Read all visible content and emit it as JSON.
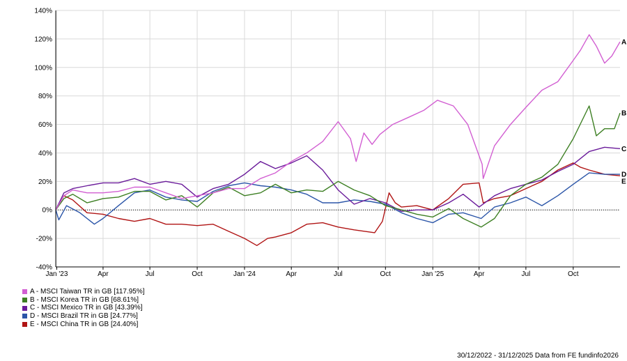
{
  "chart_data": {
    "type": "line",
    "title": "",
    "xlabel": "",
    "ylabel": "",
    "x_range": [
      "2022-12-30",
      "2025-12-31"
    ],
    "ylim": [
      -40,
      140
    ],
    "y_ticks": [
      -40,
      -20,
      0,
      20,
      40,
      60,
      80,
      100,
      120,
      140
    ],
    "y_tick_labels": [
      "-40%",
      "-20%",
      "0%",
      "20%",
      "40%",
      "60%",
      "80%",
      "100%",
      "120%",
      "140%"
    ],
    "x_ticks": [
      {
        "date": "2023-01-01",
        "label": "Jan '23"
      },
      {
        "date": "2023-04-01",
        "label": "Apr"
      },
      {
        "date": "2023-07-01",
        "label": "Jul"
      },
      {
        "date": "2023-10-01",
        "label": "Oct"
      },
      {
        "date": "2024-01-01",
        "label": "Jan '24"
      },
      {
        "date": "2024-04-01",
        "label": "Apr"
      },
      {
        "date": "2024-07-01",
        "label": "Jul"
      },
      {
        "date": "2024-10-01",
        "label": "Oct"
      },
      {
        "date": "2025-01-01",
        "label": "Jan '25"
      },
      {
        "date": "2025-04-01",
        "label": "Apr"
      },
      {
        "date": "2025-07-01",
        "label": "Jul"
      },
      {
        "date": "2025-10-01",
        "label": "Oct"
      }
    ],
    "grid": true,
    "zero_line": true,
    "legend_position": "bottom-left",
    "series": [
      {
        "letter": "A",
        "name": "A - MSCI Taiwan TR in GB [117.95%]",
        "color": "#d25fd2",
        "points": [
          [
            "2022-12-30",
            0
          ],
          [
            "2023-01-15",
            10
          ],
          [
            "2023-02-01",
            14
          ],
          [
            "2023-03-01",
            12
          ],
          [
            "2023-04-01",
            12
          ],
          [
            "2023-05-01",
            13
          ],
          [
            "2023-06-01",
            16
          ],
          [
            "2023-07-01",
            16
          ],
          [
            "2023-08-01",
            12
          ],
          [
            "2023-09-01",
            8
          ],
          [
            "2023-10-01",
            10
          ],
          [
            "2023-11-01",
            12
          ],
          [
            "2023-12-01",
            15
          ],
          [
            "2024-01-01",
            15
          ],
          [
            "2024-02-01",
            22
          ],
          [
            "2024-03-01",
            26
          ],
          [
            "2024-04-01",
            34
          ],
          [
            "2024-05-01",
            40
          ],
          [
            "2024-06-01",
            48
          ],
          [
            "2024-07-01",
            62
          ],
          [
            "2024-07-25",
            50
          ],
          [
            "2024-08-05",
            34
          ],
          [
            "2024-08-20",
            54
          ],
          [
            "2024-09-05",
            46
          ],
          [
            "2024-09-20",
            53
          ],
          [
            "2024-10-15",
            60
          ],
          [
            "2024-11-15",
            65
          ],
          [
            "2024-12-15",
            70
          ],
          [
            "2025-01-10",
            77
          ],
          [
            "2025-02-10",
            73
          ],
          [
            "2025-03-10",
            60
          ],
          [
            "2025-04-07",
            32
          ],
          [
            "2025-04-09",
            22
          ],
          [
            "2025-05-01",
            45
          ],
          [
            "2025-06-01",
            60
          ],
          [
            "2025-07-01",
            72
          ],
          [
            "2025-08-01",
            84
          ],
          [
            "2025-09-01",
            90
          ],
          [
            "2025-10-01",
            105
          ],
          [
            "2025-10-15",
            112
          ],
          [
            "2025-11-01",
            123
          ],
          [
            "2025-11-15",
            115
          ],
          [
            "2025-12-01",
            103
          ],
          [
            "2025-12-15",
            108
          ],
          [
            "2025-12-31",
            118
          ]
        ]
      },
      {
        "letter": "B",
        "name": "B - MSCI Korea TR in GB [68.61%]",
        "color": "#3d7f23",
        "points": [
          [
            "2022-12-30",
            0
          ],
          [
            "2023-01-15",
            8
          ],
          [
            "2023-02-01",
            11
          ],
          [
            "2023-03-01",
            5
          ],
          [
            "2023-04-01",
            8
          ],
          [
            "2023-05-01",
            9
          ],
          [
            "2023-06-01",
            13
          ],
          [
            "2023-07-01",
            13
          ],
          [
            "2023-08-01",
            7
          ],
          [
            "2023-09-01",
            10
          ],
          [
            "2023-10-01",
            2
          ],
          [
            "2023-11-01",
            12
          ],
          [
            "2023-12-01",
            16
          ],
          [
            "2024-01-01",
            10
          ],
          [
            "2024-02-01",
            12
          ],
          [
            "2024-03-01",
            18
          ],
          [
            "2024-04-01",
            12
          ],
          [
            "2024-05-01",
            14
          ],
          [
            "2024-06-01",
            13
          ],
          [
            "2024-07-01",
            20
          ],
          [
            "2024-08-01",
            14
          ],
          [
            "2024-09-01",
            10
          ],
          [
            "2024-10-01",
            3
          ],
          [
            "2024-11-01",
            0
          ],
          [
            "2024-12-01",
            -3
          ],
          [
            "2025-01-01",
            -5
          ],
          [
            "2025-02-01",
            1
          ],
          [
            "2025-03-01",
            -6
          ],
          [
            "2025-04-05",
            -12
          ],
          [
            "2025-05-01",
            -6
          ],
          [
            "2025-06-01",
            10
          ],
          [
            "2025-07-01",
            18
          ],
          [
            "2025-08-01",
            23
          ],
          [
            "2025-09-01",
            32
          ],
          [
            "2025-10-01",
            50
          ],
          [
            "2025-11-01",
            73
          ],
          [
            "2025-11-15",
            52
          ],
          [
            "2025-12-01",
            57
          ],
          [
            "2025-12-20",
            57
          ],
          [
            "2025-12-31",
            68
          ]
        ]
      },
      {
        "letter": "C",
        "name": "C - MSCI Mexico TR in GB [43.39%]",
        "color": "#6a1b9a",
        "points": [
          [
            "2022-12-30",
            0
          ],
          [
            "2023-01-15",
            12
          ],
          [
            "2023-02-01",
            15
          ],
          [
            "2023-03-01",
            17
          ],
          [
            "2023-04-01",
            19
          ],
          [
            "2023-05-01",
            19
          ],
          [
            "2023-06-01",
            22
          ],
          [
            "2023-07-01",
            18
          ],
          [
            "2023-08-01",
            20
          ],
          [
            "2023-09-01",
            18
          ],
          [
            "2023-10-01",
            9
          ],
          [
            "2023-11-01",
            15
          ],
          [
            "2023-12-01",
            18
          ],
          [
            "2024-01-01",
            25
          ],
          [
            "2024-02-01",
            34
          ],
          [
            "2024-03-01",
            29
          ],
          [
            "2024-04-01",
            33
          ],
          [
            "2024-05-01",
            38
          ],
          [
            "2024-06-01",
            28
          ],
          [
            "2024-07-01",
            14
          ],
          [
            "2024-08-01",
            4
          ],
          [
            "2024-09-01",
            8
          ],
          [
            "2024-10-01",
            5
          ],
          [
            "2024-11-01",
            -1
          ],
          [
            "2024-12-01",
            0
          ],
          [
            "2025-01-01",
            0
          ],
          [
            "2025-02-01",
            5
          ],
          [
            "2025-03-01",
            11
          ],
          [
            "2025-04-01",
            2
          ],
          [
            "2025-05-01",
            10
          ],
          [
            "2025-06-01",
            15
          ],
          [
            "2025-07-01",
            18
          ],
          [
            "2025-08-01",
            21
          ],
          [
            "2025-09-01",
            27
          ],
          [
            "2025-10-01",
            32
          ],
          [
            "2025-11-01",
            41
          ],
          [
            "2025-12-01",
            44
          ],
          [
            "2025-12-31",
            43
          ]
        ]
      },
      {
        "letter": "D",
        "name": "D - MSCI Brazil TR in GB [24.77%]",
        "color": "#2b55a8",
        "points": [
          [
            "2022-12-30",
            0
          ],
          [
            "2023-01-05",
            -7
          ],
          [
            "2023-01-20",
            3
          ],
          [
            "2023-02-15",
            -2
          ],
          [
            "2023-03-15",
            -10
          ],
          [
            "2023-04-01",
            -6
          ],
          [
            "2023-05-01",
            3
          ],
          [
            "2023-06-01",
            12
          ],
          [
            "2023-07-01",
            14
          ],
          [
            "2023-08-01",
            9
          ],
          [
            "2023-09-01",
            7
          ],
          [
            "2023-10-01",
            6
          ],
          [
            "2023-11-01",
            13
          ],
          [
            "2023-12-01",
            17
          ],
          [
            "2024-01-01",
            19
          ],
          [
            "2024-02-01",
            17
          ],
          [
            "2024-03-01",
            16
          ],
          [
            "2024-04-01",
            14
          ],
          [
            "2024-05-01",
            11
          ],
          [
            "2024-06-01",
            5
          ],
          [
            "2024-07-01",
            5
          ],
          [
            "2024-08-01",
            7
          ],
          [
            "2024-09-01",
            6
          ],
          [
            "2024-10-01",
            4
          ],
          [
            "2024-11-01",
            -2
          ],
          [
            "2024-12-01",
            -6
          ],
          [
            "2025-01-01",
            -9
          ],
          [
            "2025-02-01",
            -3
          ],
          [
            "2025-03-01",
            -2
          ],
          [
            "2025-04-05",
            -6
          ],
          [
            "2025-05-01",
            2
          ],
          [
            "2025-06-01",
            5
          ],
          [
            "2025-07-01",
            9
          ],
          [
            "2025-08-01",
            3
          ],
          [
            "2025-09-01",
            10
          ],
          [
            "2025-10-01",
            18
          ],
          [
            "2025-11-01",
            26
          ],
          [
            "2025-12-01",
            25
          ],
          [
            "2025-12-31",
            25
          ]
        ]
      },
      {
        "letter": "E",
        "name": "E - MSCI China TR in GB [24.40%]",
        "color": "#b01414",
        "points": [
          [
            "2022-12-30",
            0
          ],
          [
            "2023-01-15",
            10
          ],
          [
            "2023-02-01",
            7
          ],
          [
            "2023-03-01",
            -2
          ],
          [
            "2023-04-01",
            -3
          ],
          [
            "2023-05-01",
            -6
          ],
          [
            "2023-06-01",
            -8
          ],
          [
            "2023-07-01",
            -6
          ],
          [
            "2023-08-01",
            -10
          ],
          [
            "2023-09-01",
            -10
          ],
          [
            "2023-10-01",
            -11
          ],
          [
            "2023-11-01",
            -10
          ],
          [
            "2023-12-01",
            -15
          ],
          [
            "2024-01-01",
            -20
          ],
          [
            "2024-01-25",
            -25
          ],
          [
            "2024-02-15",
            -20
          ],
          [
            "2024-03-01",
            -19
          ],
          [
            "2024-04-01",
            -16
          ],
          [
            "2024-05-01",
            -10
          ],
          [
            "2024-06-01",
            -9
          ],
          [
            "2024-07-01",
            -12
          ],
          [
            "2024-08-01",
            -14
          ],
          [
            "2024-09-10",
            -16
          ],
          [
            "2024-09-25",
            -8
          ],
          [
            "2024-10-08",
            12
          ],
          [
            "2024-10-20",
            5
          ],
          [
            "2024-11-01",
            2
          ],
          [
            "2024-12-01",
            3
          ],
          [
            "2025-01-01",
            0
          ],
          [
            "2025-02-01",
            8
          ],
          [
            "2025-03-01",
            18
          ],
          [
            "2025-04-01",
            19
          ],
          [
            "2025-04-09",
            5
          ],
          [
            "2025-05-01",
            8
          ],
          [
            "2025-06-01",
            10
          ],
          [
            "2025-07-01",
            15
          ],
          [
            "2025-08-01",
            20
          ],
          [
            "2025-09-01",
            28
          ],
          [
            "2025-10-01",
            33
          ],
          [
            "2025-10-15",
            30
          ],
          [
            "2025-11-01",
            28
          ],
          [
            "2025-12-01",
            25
          ],
          [
            "2025-12-31",
            24
          ]
        ]
      }
    ]
  },
  "legend": {
    "items": [
      {
        "label": "A - MSCI Taiwan TR in GB [117.95%]",
        "color": "#d25fd2"
      },
      {
        "label": "B - MSCI Korea TR in GB [68.61%]",
        "color": "#3d7f23"
      },
      {
        "label": "C - MSCI Mexico TR in GB [43.39%]",
        "color": "#6a1b9a"
      },
      {
        "label": "D - MSCI Brazil TR in GB [24.77%]",
        "color": "#2b55a8"
      },
      {
        "label": "E - MSCI China TR in GB [24.40%]",
        "color": "#b01414"
      }
    ]
  },
  "footer": {
    "text": "30/12/2022 - 31/12/2025 Data from FE fundinfo2026"
  }
}
